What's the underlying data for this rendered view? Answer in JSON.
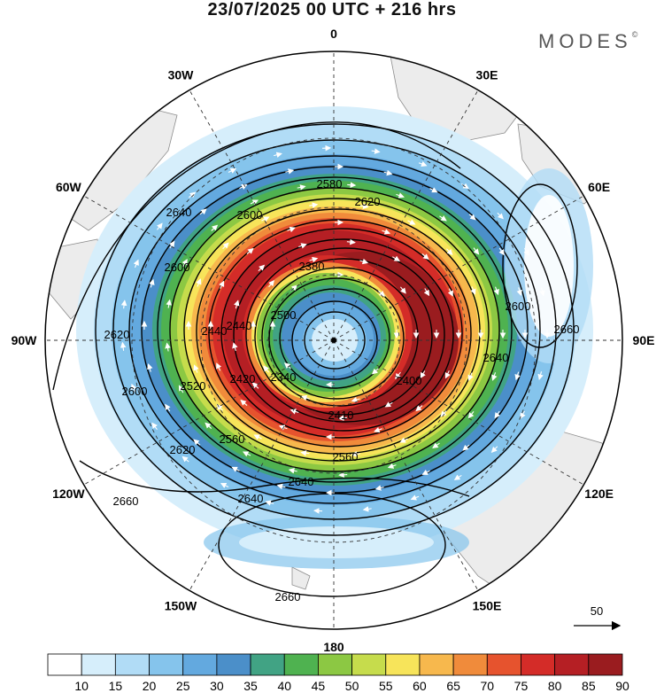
{
  "header": {
    "title": "23/07/2025  00 UTC  + 216 hrs",
    "brand": "MODES",
    "brand_mark": "©"
  },
  "map": {
    "projection": "south-polar-stereographic",
    "longitude_labels": [
      "0",
      "30E",
      "60E",
      "90E",
      "120E",
      "150E",
      "180",
      "150W",
      "120W",
      "90W",
      "60W",
      "30W"
    ],
    "contour_labels": [
      "2580",
      "2600",
      "2640",
      "2600",
      "2380",
      "2500",
      "2440",
      "2440",
      "2340",
      "2420",
      "2400",
      "2620",
      "2640",
      "2660",
      "2600",
      "2520",
      "2560",
      "2620",
      "2640",
      "2660",
      "2640",
      "2660",
      "2600",
      "2620",
      "2560",
      "2410"
    ],
    "vector_reference": "50",
    "colors": {
      "land": "#ececec",
      "coast": "#8c8c8c",
      "grid": "#333333",
      "contour": "#000000",
      "vector": "#ffffff"
    }
  },
  "colorbar": {
    "levels": [
      "10",
      "15",
      "20",
      "25",
      "30",
      "35",
      "40",
      "45",
      "50",
      "55",
      "60",
      "65",
      "70",
      "75",
      "80",
      "85",
      "90"
    ],
    "colors": [
      "#ffffff",
      "#d6eefb",
      "#b1dcf6",
      "#85c4ec",
      "#63a9df",
      "#4b8fc9",
      "#41a384",
      "#4fb250",
      "#8cc843",
      "#c6dc4c",
      "#f7e45a",
      "#f7b84d",
      "#f08b3b",
      "#e6532e",
      "#d42c28",
      "#b51f24",
      "#9a1c1f"
    ]
  }
}
